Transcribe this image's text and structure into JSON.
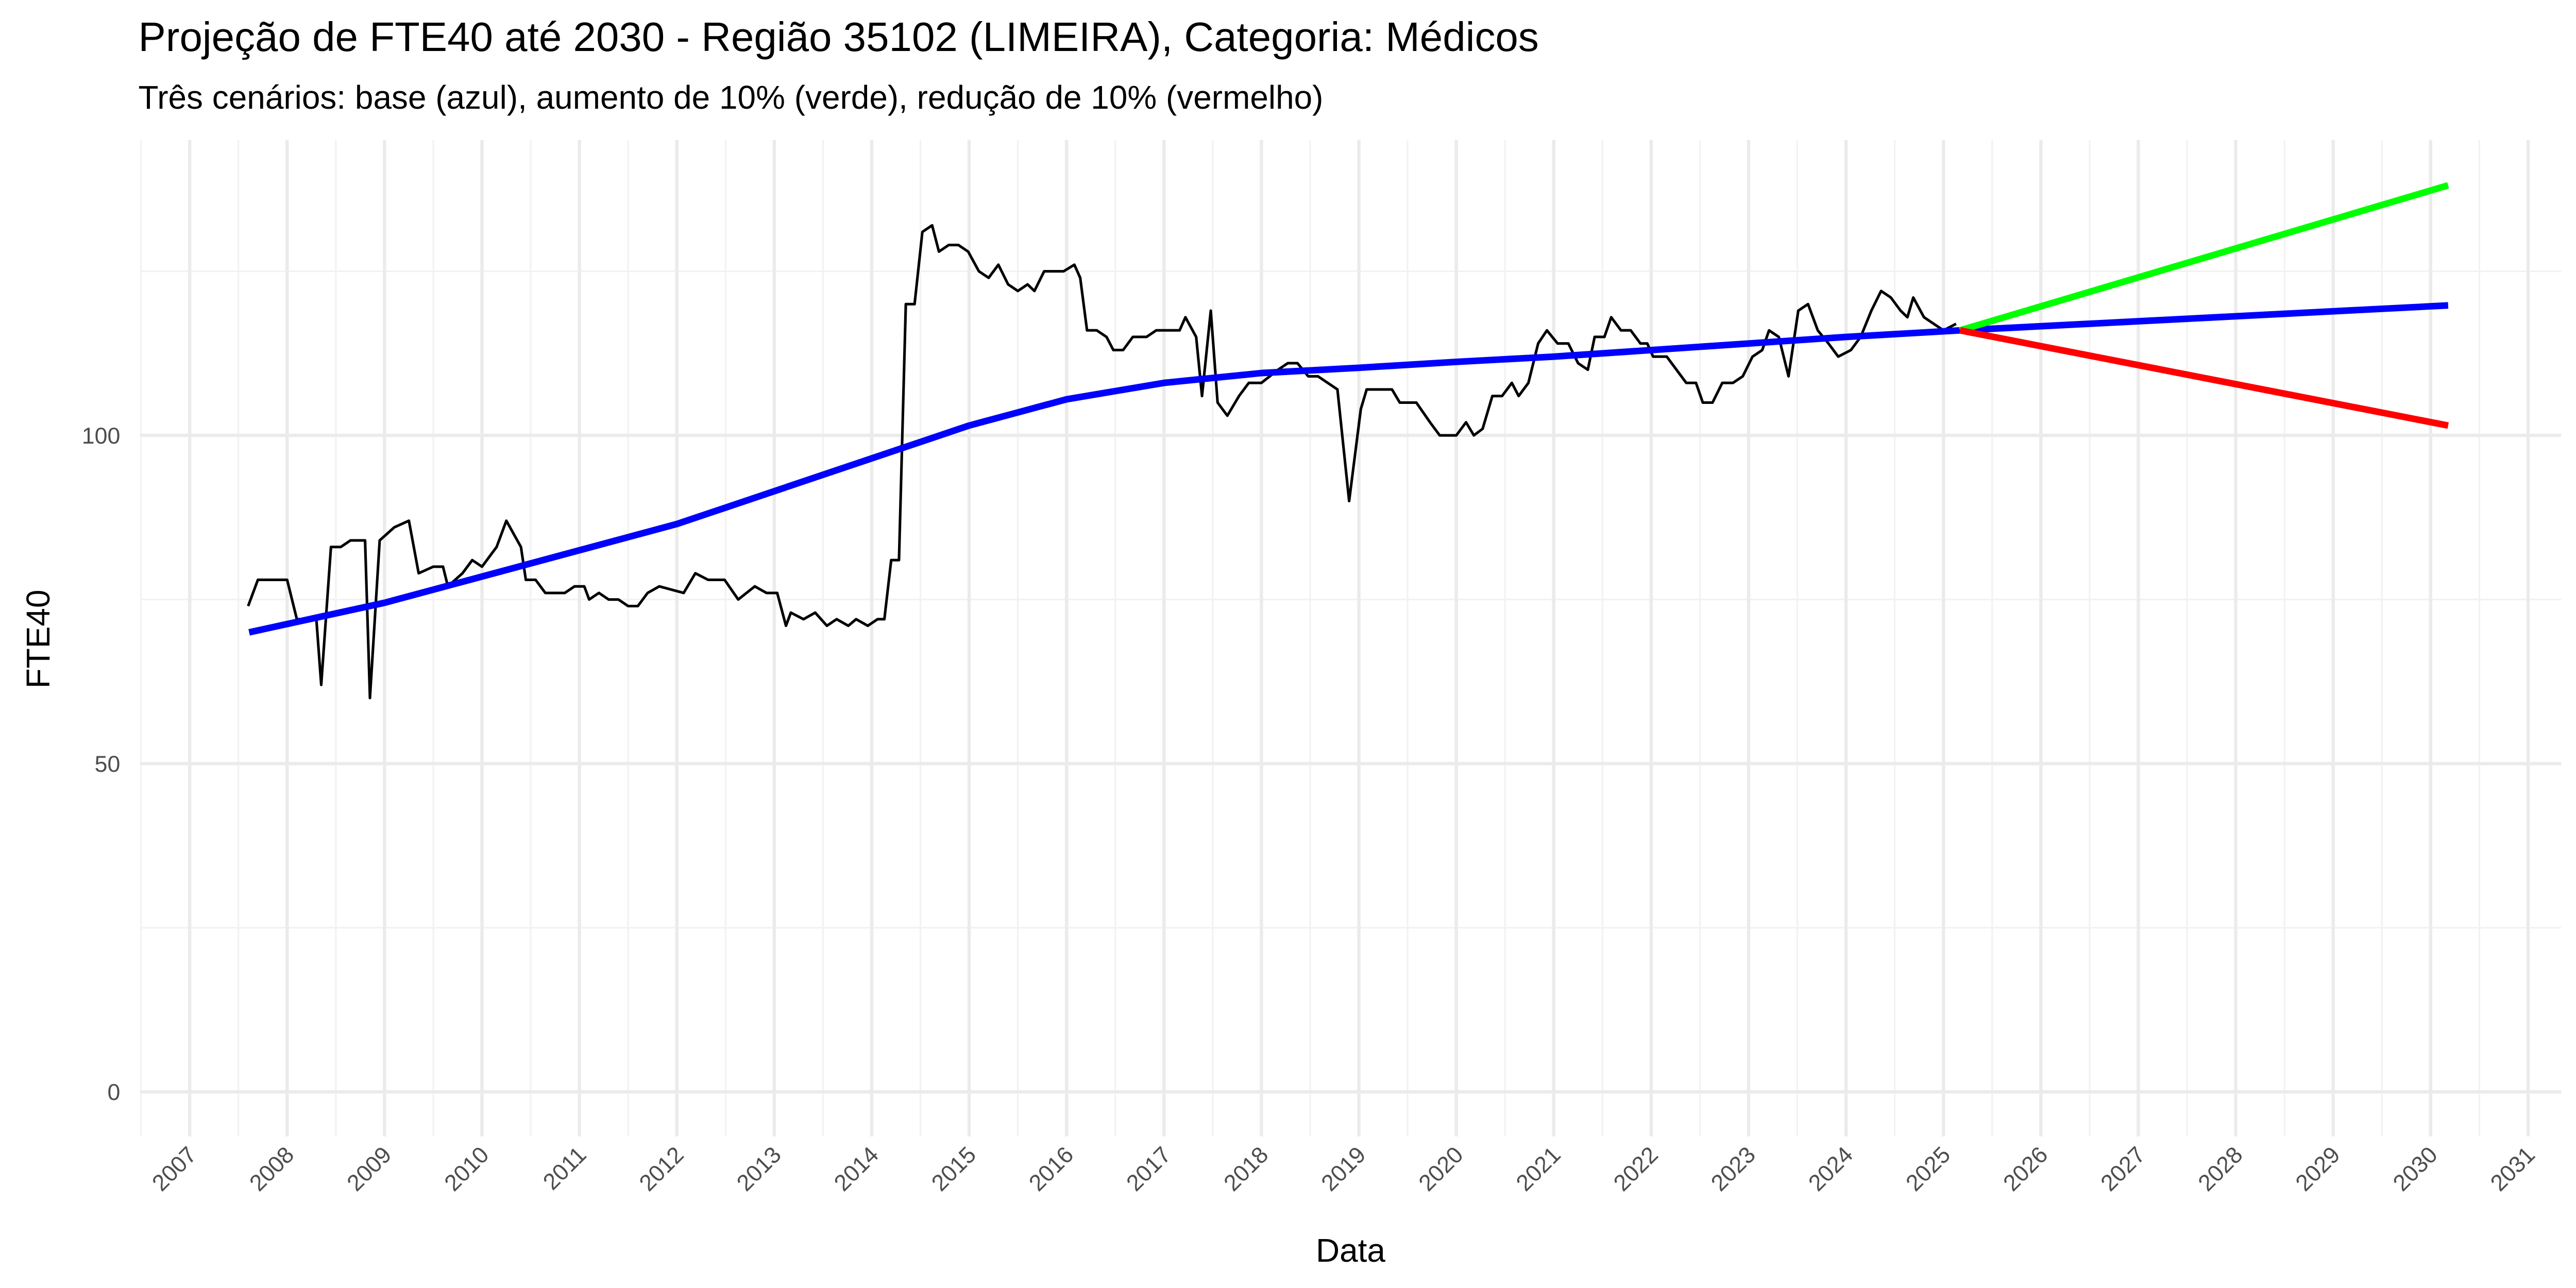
{
  "chart_data": {
    "type": "line",
    "title": "Projeção de FTE40 até 2030 - Região 35102 (LIMEIRA), Categoria: Médicos",
    "subtitle": "Três cenários: base (azul), aumento de 10% (verde), redução de 10% (vermelho)",
    "x_label": "Data",
    "y_label": "FTE40",
    "xlim": [
      2006.49,
      2031.34
    ],
    "ylim": [
      -6.8,
      145
    ],
    "xticks": [
      2007,
      2008,
      2009,
      2010,
      2011,
      2012,
      2013,
      2014,
      2015,
      2016,
      2017,
      2018,
      2019,
      2020,
      2021,
      2022,
      2023,
      2024,
      2025,
      2026,
      2027,
      2028,
      2029,
      2030,
      2031
    ],
    "yticks": [
      0,
      50,
      100
    ],
    "xminorticks": [
      2006.5,
      2007.5,
      2008.5,
      2009.5,
      2010.5,
      2011.5,
      2012.5,
      2013.5,
      2014.5,
      2015.5,
      2016.5,
      2017.5,
      2018.5,
      2019.5,
      2020.5,
      2021.5,
      2022.5,
      2023.5,
      2024.5,
      2025.5,
      2026.5,
      2027.5,
      2028.5,
      2029.5,
      2030.5
    ],
    "yminorticks": [
      25,
      75,
      125
    ],
    "grid": true,
    "series": [
      {
        "color": "#000000",
        "width": 1.6,
        "x": [
          2007.6,
          2007.7,
          2008.0,
          2008.1,
          2008.3,
          2008.35,
          2008.45,
          2008.55,
          2008.65,
          2008.8,
          2008.85,
          2008.95,
          2009.1,
          2009.25,
          2009.35,
          2009.5,
          2009.6,
          2009.65,
          2009.8,
          2009.9,
          2010.0,
          2010.15,
          2010.25,
          2010.4,
          2010.45,
          2010.55,
          2010.65,
          2010.85,
          2010.95,
          2011.05,
          2011.1,
          2011.2,
          2011.3,
          2011.4,
          2011.5,
          2011.6,
          2011.7,
          2011.82,
          2012.07,
          2012.19,
          2012.32,
          2012.49,
          2012.63,
          2012.8,
          2012.92,
          2013.03,
          2013.12,
          2013.17,
          2013.3,
          2013.42,
          2013.54,
          2013.64,
          2013.76,
          2013.84,
          2013.96,
          2014.06,
          2014.13,
          2014.2,
          2014.28,
          2014.35,
          2014.44,
          2014.52,
          2014.62,
          2014.69,
          2014.79,
          2014.89,
          2014.99,
          2015.1,
          2015.2,
          2015.3,
          2015.4,
          2015.5,
          2015.6,
          2015.67,
          2015.77,
          2015.97,
          2016.08,
          2016.14,
          2016.21,
          2016.31,
          2016.41,
          2016.48,
          2016.58,
          2016.68,
          2016.82,
          2016.92,
          2017.16,
          2017.22,
          2017.33,
          2017.39,
          2017.48,
          2017.55,
          2017.65,
          2017.77,
          2017.87,
          2018.0,
          2018.17,
          2018.27,
          2018.37,
          2018.48,
          2018.58,
          2018.68,
          2018.78,
          2018.9,
          2019.02,
          2019.08,
          2019.34,
          2019.42,
          2019.59,
          2019.73,
          2019.83,
          2020.0,
          2020.1,
          2020.18,
          2020.27,
          2020.37,
          2020.47,
          2020.57,
          2020.64,
          2020.74,
          2020.84,
          2020.93,
          2021.04,
          2021.15,
          2021.25,
          2021.35,
          2021.42,
          2021.52,
          2021.59,
          2021.69,
          2021.79,
          2021.89,
          2021.96,
          2022.02,
          2022.16,
          2022.26,
          2022.36,
          2022.46,
          2022.53,
          2022.63,
          2022.73,
          2022.84,
          2022.94,
          2023.04,
          2023.14,
          2023.21,
          2023.31,
          2023.41,
          2023.51,
          2023.61,
          2023.71,
          2023.82,
          2023.92,
          2024.05,
          2024.15,
          2024.26,
          2024.36,
          2024.46,
          2024.56,
          2024.63,
          2024.69,
          2024.8,
          2024.9,
          2025.0,
          2025.13
        ],
        "values": [
          74,
          78,
          78,
          72,
          72,
          62,
          83,
          83,
          84,
          84,
          60,
          84,
          86,
          87,
          79,
          80,
          80,
          77,
          79,
          81,
          80,
          83,
          87,
          83,
          78,
          78,
          76,
          76,
          77,
          77,
          75,
          76,
          75,
          75,
          74,
          74,
          76,
          77,
          76,
          79,
          78,
          78,
          75,
          77,
          76,
          76,
          71,
          73,
          72,
          73,
          71,
          72,
          71,
          72,
          71,
          72,
          72,
          81,
          81,
          120,
          120,
          131,
          132,
          128,
          129,
          129,
          128,
          125,
          124,
          126,
          123,
          122,
          123,
          122,
          125,
          125,
          126,
          124,
          116,
          116,
          115,
          113,
          113,
          115,
          115,
          116,
          116,
          118,
          115,
          106,
          119,
          105,
          103,
          106,
          108,
          108,
          110,
          111,
          111,
          109,
          109,
          108,
          107,
          90,
          104,
          107,
          107,
          105,
          105,
          102,
          100,
          100,
          102,
          100,
          101,
          106,
          106,
          108,
          106,
          108,
          114,
          116,
          114,
          114,
          111,
          110,
          115,
          115,
          118,
          116,
          116,
          114,
          114,
          112,
          112,
          110,
          108,
          108,
          105,
          105,
          108,
          108,
          109,
          112,
          113,
          116,
          115,
          109,
          119,
          120,
          116,
          114,
          112,
          113,
          115,
          119,
          122,
          121,
          119,
          118,
          121,
          118,
          117,
          116,
          117
        ]
      },
      {
        "color": "#0000ff",
        "width": 4,
        "x": [
          2007.61,
          2009.0,
          2010.0,
          2011.0,
          2012.0,
          2013.0,
          2014.0,
          2015.0,
          2015.5,
          2016.0,
          2017.0,
          2018.0,
          2019.0,
          2020.0,
          2021.0,
          2022.0,
          2023.0,
          2024.0,
          2025.17,
          2030.18
        ],
        "values": [
          70,
          74.5,
          78.5,
          82.5,
          86.5,
          91.5,
          96.5,
          101.5,
          103.5,
          105.5,
          108,
          109.5,
          110.3,
          111.2,
          112,
          113,
          114,
          115,
          116,
          119.8
        ]
      },
      {
        "color": "#00ff00",
        "width": 4,
        "x": [
          2025.17,
          2030.18
        ],
        "values": [
          116,
          138.1
        ]
      },
      {
        "color": "#ff0000",
        "width": 4,
        "x": [
          2025.17,
          2030.18
        ],
        "values": [
          116,
          101.5
        ]
      }
    ]
  }
}
